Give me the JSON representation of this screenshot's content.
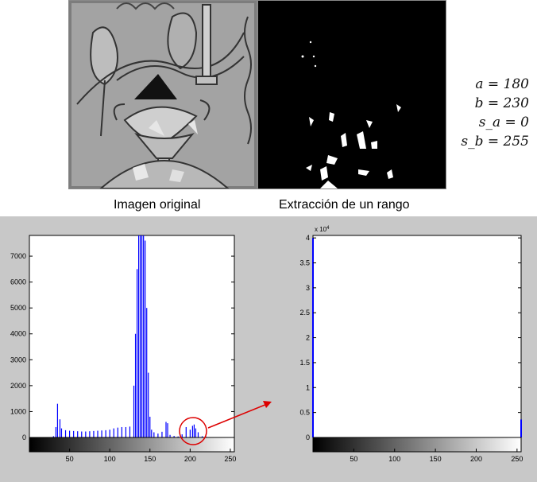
{
  "captions": {
    "original": "Imagen original",
    "extraction": "Extracción de un rango"
  },
  "parameters": [
    "a = 180",
    "b = 230",
    "s_a = 0",
    "s_b = 255"
  ],
  "chart_data": [
    {
      "type": "bar",
      "title": "",
      "xlabel": "",
      "ylabel": "",
      "xlim": [
        0,
        255
      ],
      "ylim": [
        0,
        7800
      ],
      "xticks": [
        "50",
        "100",
        "150",
        "200",
        "250"
      ],
      "yticks": [
        "0",
        "1000",
        "2000",
        "3000",
        "4000",
        "5000",
        "6000",
        "7000"
      ],
      "series_color": "#0000ff",
      "x": [
        30,
        33,
        35,
        38,
        40,
        45,
        50,
        55,
        60,
        65,
        70,
        75,
        80,
        85,
        90,
        95,
        100,
        105,
        110,
        115,
        120,
        125,
        130,
        132,
        134,
        136,
        138,
        140,
        142,
        144,
        146,
        148,
        150,
        152,
        155,
        160,
        165,
        170,
        172,
        175,
        180,
        185,
        190,
        195,
        200,
        203,
        205,
        207,
        210,
        215,
        220
      ],
      "values": [
        50,
        400,
        1300,
        700,
        350,
        280,
        260,
        250,
        240,
        230,
        230,
        240,
        250,
        260,
        270,
        280,
        300,
        350,
        380,
        400,
        400,
        420,
        2000,
        4000,
        6500,
        7800,
        7800,
        7800,
        7800,
        7600,
        5000,
        2500,
        800,
        300,
        200,
        150,
        220,
        600,
        550,
        100,
        60,
        40,
        120,
        400,
        300,
        450,
        500,
        350,
        200,
        50,
        20
      ]
    },
    {
      "type": "bar",
      "title": "",
      "xlabel": "",
      "ylabel": "",
      "xlim": [
        0,
        255
      ],
      "ylim": [
        0,
        40500
      ],
      "y_exponent_label": "x 10",
      "y_exponent_power": "4",
      "xticks": [
        "50",
        "100",
        "150",
        "200",
        "250"
      ],
      "yticks": [
        "0",
        "0.5",
        "1",
        "1.5",
        "2",
        "2.5",
        "3",
        "3.5",
        "4"
      ],
      "series_color": "#0000ff",
      "x": [
        0,
        255
      ],
      "values": [
        40000,
        3600
      ]
    }
  ]
}
